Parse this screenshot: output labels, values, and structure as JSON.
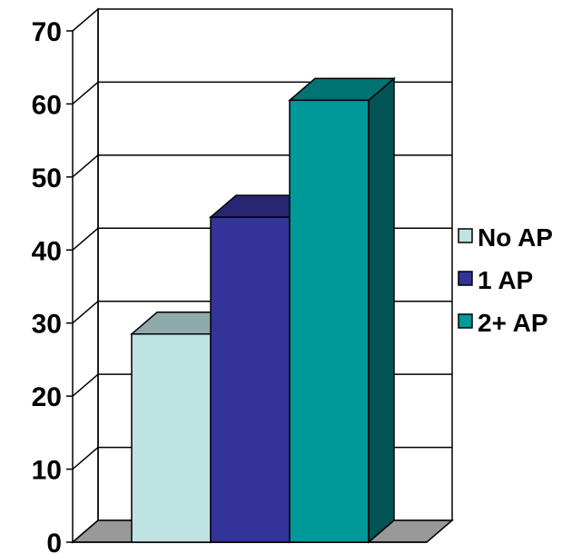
{
  "chart_data": {
    "type": "bar",
    "style": "3d-clustered",
    "title": "",
    "xlabel": "",
    "ylabel": "",
    "ylim": [
      0,
      70
    ],
    "yticks": [
      0,
      10,
      20,
      30,
      40,
      50,
      60,
      70
    ],
    "grid": true,
    "legend_position": "right",
    "series": [
      {
        "name": "No AP",
        "value": 28.5,
        "color": "#bfe3e3"
      },
      {
        "name": "1 AP",
        "value": 44.5,
        "color": "#333399"
      },
      {
        "name": "2+ AP",
        "value": 60.5,
        "color": "#009999"
      }
    ]
  }
}
